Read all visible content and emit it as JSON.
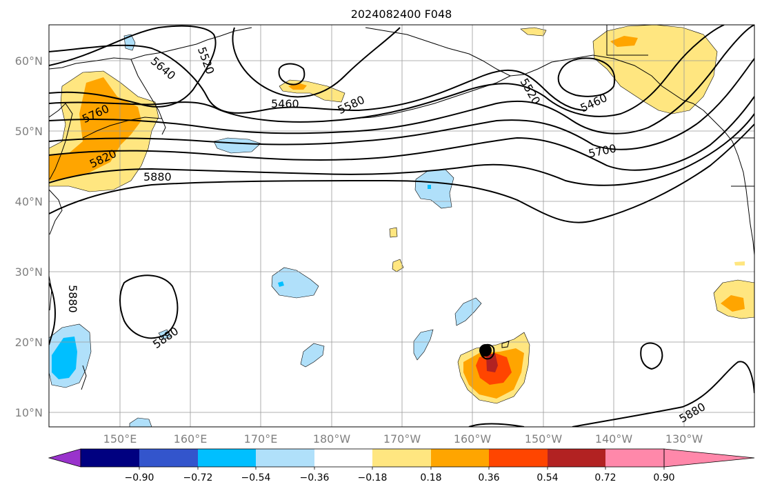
{
  "title": "2024082400 F048",
  "lat_labels": [
    "60°N",
    "50°N",
    "40°N",
    "30°N",
    "20°N",
    "10°N"
  ],
  "lon_labels": [
    "150°E",
    "160°E",
    "170°E",
    "180°W",
    "170°W",
    "160°W",
    "150°W",
    "140°W",
    "130°W"
  ],
  "contour_labels": {
    "c5520a": "5520",
    "c5640": "5640",
    "c5760": "5760",
    "c5820": "5820",
    "c5880a": "5880",
    "c5460a": "5460",
    "c5580": "5580",
    "c5520b": "5520",
    "c5460b": "5460",
    "c5700": "5700",
    "c5880_left": "5880",
    "c5880_mid": "5880",
    "c5880_right": "5880"
  },
  "colorbar": {
    "tick_labels": [
      "−0.90",
      "−0.72",
      "−0.54",
      "−0.36",
      "−0.18",
      "0.18",
      "0.36",
      "0.54",
      "0.72",
      "0.90"
    ],
    "colors": [
      "#9933cc",
      "#000080",
      "#3355cc",
      "#00bfff",
      "#b0e0fa",
      "#ffffff",
      "#ffe680",
      "#ffa500",
      "#ff4500",
      "#b22222",
      "#ff88aa"
    ]
  },
  "colors": {
    "land_line": "#000000",
    "grid": "#999999",
    "axis_label": "#808080",
    "contour": "#000000",
    "marker": "#000000"
  }
}
